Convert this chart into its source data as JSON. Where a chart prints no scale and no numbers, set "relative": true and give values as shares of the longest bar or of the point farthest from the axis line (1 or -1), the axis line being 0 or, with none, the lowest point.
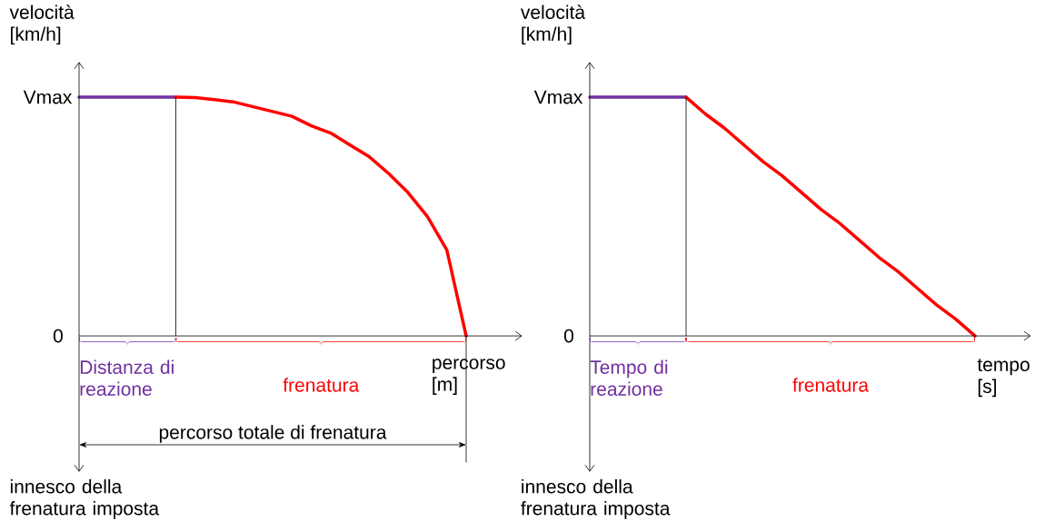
{
  "chart_data": [
    {
      "type": "line",
      "relative": true,
      "ylabel": "velocità [km/h]",
      "xlabel": "percorso [m]",
      "categories": [
        null,
        null,
        null,
        null,
        null,
        null,
        null,
        null,
        null,
        null,
        null,
        null,
        null,
        null,
        null,
        null,
        null,
        null,
        null,
        null,
        null
      ],
      "series": [
        {
          "name": "Distanza di reazione",
          "color": "#7030a0",
          "values": [
            1,
            1,
            1,
            1,
            1,
            1,
            null,
            null,
            null,
            null,
            null,
            null,
            null,
            null,
            null,
            null,
            null,
            null,
            null,
            null,
            null
          ]
        },
        {
          "name": "frenatura",
          "color": "#ff0000",
          "values": [
            null,
            null,
            null,
            null,
            null,
            1,
            0.998,
            0.99,
            0.98,
            0.96,
            0.94,
            0.92,
            0.88,
            0.85,
            0.8,
            0.75,
            0.68,
            0.6,
            0.5,
            0.36,
            0
          ]
        }
      ],
      "annotations": [
        "Vmax",
        "0",
        "innesco della frenatura imposta",
        "percorso totale di frenatura"
      ]
    },
    {
      "type": "line",
      "relative": true,
      "ylabel": "velocità [km/h]",
      "xlabel": "tempo [s]",
      "categories": [
        null,
        null,
        null,
        null,
        null,
        null,
        null,
        null,
        null,
        null,
        null,
        null,
        null,
        null,
        null,
        null,
        null,
        null,
        null,
        null,
        null
      ],
      "series": [
        {
          "name": "Tempo di reazione",
          "color": "#7030a0",
          "values": [
            1,
            1,
            1,
            1,
            1,
            1,
            null,
            null,
            null,
            null,
            null,
            null,
            null,
            null,
            null,
            null,
            null,
            null,
            null,
            null,
            null
          ]
        },
        {
          "name": "frenatura",
          "color": "#ff0000",
          "values": [
            null,
            null,
            null,
            null,
            null,
            1,
            0.93,
            0.87,
            0.8,
            0.73,
            0.67,
            0.6,
            0.53,
            0.47,
            0.4,
            0.33,
            0.27,
            0.2,
            0.13,
            0.07,
            0
          ]
        }
      ],
      "annotations": [
        "Vmax",
        "0",
        "innesco della frenatura imposta"
      ]
    }
  ]
}
